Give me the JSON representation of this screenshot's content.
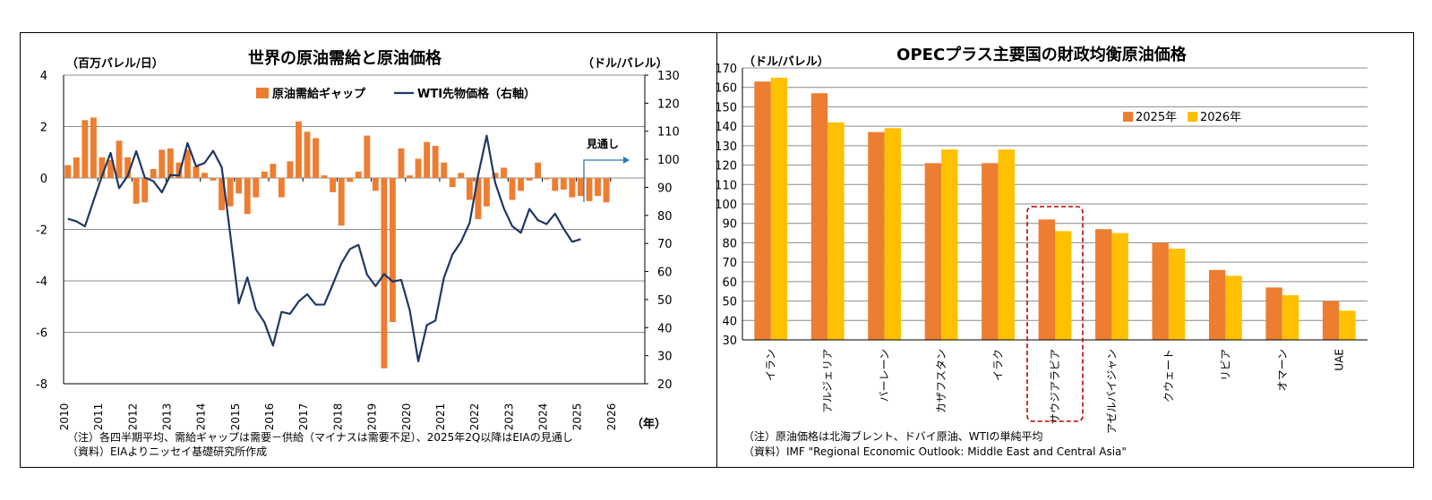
{
  "chart_data": [
    {
      "type": "bar+line",
      "title": "世界の原油需給と原油価格",
      "left_unit": "（百万バレル/日）",
      "right_unit": "（ドル/バレル）",
      "xlabel": "（年）",
      "left_ylim": [
        -8,
        4
      ],
      "right_ylim": [
        20,
        130
      ],
      "left_ticks": [
        "4",
        "2",
        "0",
        "-2",
        "-4",
        "-6",
        "-8"
      ],
      "right_ticks": [
        "130",
        "120",
        "110",
        "100",
        "90",
        "80",
        "70",
        "60",
        "50",
        "40",
        "30",
        "20"
      ],
      "x_labels": [
        "2010",
        "2011",
        "2012",
        "2013",
        "2014",
        "2015",
        "2016",
        "2017",
        "2018",
        "2019",
        "2020",
        "2021",
        "2022",
        "2023",
        "2024",
        "2025",
        "2026"
      ],
      "start_year": 2010,
      "forecast_label": "見通し",
      "legend": [
        "原油需給ギャップ",
        "WTI先物価格（右軸）"
      ],
      "series": [
        {
          "name": "原油需給ギャップ",
          "kind": "bar",
          "color": "#ED7D31",
          "values": [
            0.5,
            0.8,
            2.25,
            2.35,
            0.8,
            0.7,
            1.45,
            0.8,
            -1.0,
            -0.95,
            0.35,
            1.1,
            1.15,
            0.6,
            1.1,
            0.45,
            0.2,
            -0.1,
            -1.25,
            -1.1,
            -0.6,
            -1.4,
            -0.75,
            0.25,
            0.55,
            -0.75,
            0.65,
            2.2,
            1.8,
            1.55,
            0.1,
            -0.55,
            -1.85,
            -0.15,
            0.25,
            1.65,
            -0.5,
            -7.4,
            -5.6,
            1.15,
            0.1,
            0.75,
            1.4,
            1.25,
            0.6,
            -0.35,
            0.2,
            -0.85,
            -1.6,
            -1.1,
            0.2,
            0.4,
            -0.85,
            -0.5,
            -0.1,
            0.6,
            -0.05,
            -0.5,
            -0.45,
            -0.75,
            -0.7,
            -0.9,
            -0.7,
            -0.95
          ]
        },
        {
          "name": "WTI先物価格（右軸）",
          "kind": "line",
          "axis": "right",
          "color": "#1F3864",
          "values": [
            78.8,
            77.9,
            76.1,
            85.2,
            94.1,
            102.3,
            89.7,
            94.1,
            102.9,
            93.5,
            92.2,
            88.2,
            94.4,
            94.2,
            105.8,
            97.5,
            98.7,
            103.0,
            97.2,
            73.2,
            48.6,
            57.9,
            46.5,
            41.9,
            33.6,
            45.6,
            44.9,
            49.3,
            51.9,
            48.2,
            48.2,
            55.4,
            62.9,
            68.0,
            69.5,
            58.9,
            54.8,
            59.1,
            56.4,
            57.0,
            46.2,
            28.0,
            40.9,
            42.5,
            57.8,
            66.1,
            70.6,
            77.3,
            94.3,
            108.4,
            91.6,
            82.6,
            76.1,
            73.8,
            82.3,
            78.3,
            76.9,
            80.6,
            75.3,
            70.6,
            71.5
          ]
        }
      ],
      "notes": [
        "（注）各四半期平均、需給ギャップは需要－供給（マイナスは需要不足）、2025年2Q以降はEIAの見通し",
        "（資料）EIAよりニッセイ基礎研究所作成"
      ]
    },
    {
      "type": "bar",
      "title": "OPECプラス主要国の財政均衡原油価格",
      "ylabel": "（ドル/バレル）",
      "ylim": [
        30,
        170
      ],
      "y_ticks": [
        "170",
        "160",
        "150",
        "140",
        "130",
        "120",
        "110",
        "100",
        "90",
        "80",
        "70",
        "60",
        "50",
        "40",
        "30"
      ],
      "categories": [
        "イラン",
        "アルジェリア",
        "バーレーン",
        "カザフスタン",
        "イラク",
        "サウジアラビア",
        "アゼルバイジャン",
        "クウェート",
        "リビア",
        "オマーン",
        "UAE"
      ],
      "highlight": "サウジアラビア",
      "series": [
        {
          "name": "2025年",
          "color": "#ED7D31",
          "values": [
            163,
            157,
            137,
            121,
            121,
            92,
            87,
            80,
            66,
            57,
            50
          ]
        },
        {
          "name": "2026年",
          "color": "#FFC000",
          "values": [
            165,
            142,
            139,
            128,
            128,
            86,
            85,
            77,
            63,
            53,
            45
          ]
        }
      ],
      "notes": [
        "（注）原油価格は北海ブレント、ドバイ原油、WTIの単純平均",
        "（資料）IMF \"Regional Economic Outlook: Middle East and Central Asia\""
      ]
    }
  ]
}
